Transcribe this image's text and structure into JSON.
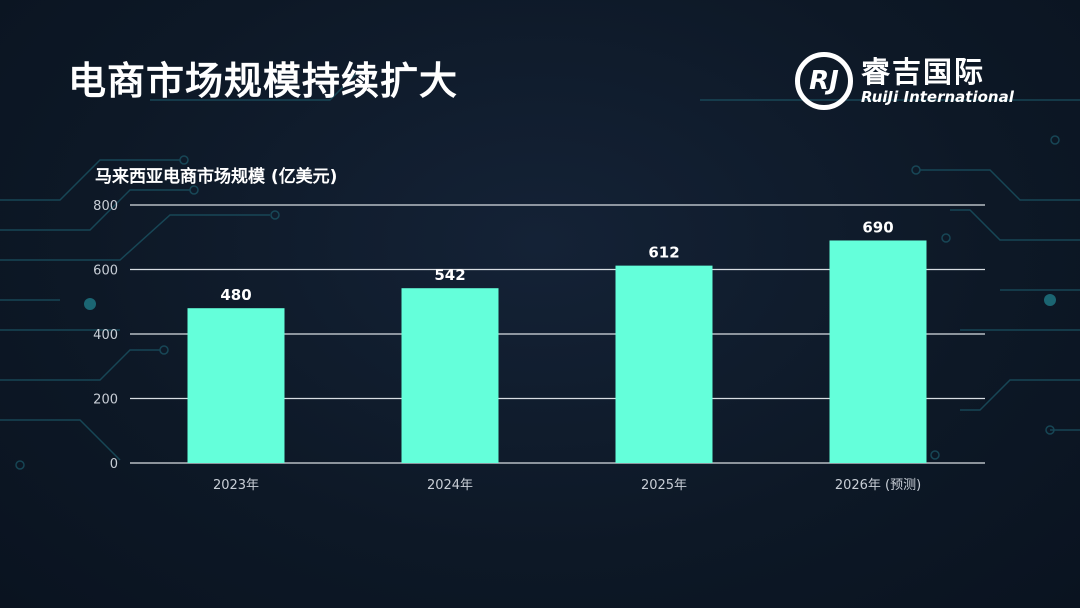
{
  "header": {
    "title": "电商市场规模持续扩大"
  },
  "logo": {
    "mark": "RJ",
    "cn": "睿吉国际",
    "en": "RuiJi International"
  },
  "chart_data": {
    "type": "bar",
    "title": "马来西亚电商市场规模 (亿美元)",
    "categories": [
      "2023年",
      "2024年",
      "2025年",
      "2026年 (预测)"
    ],
    "values": [
      480,
      542,
      612,
      690
    ],
    "ylim": [
      0,
      800
    ],
    "yticks": [
      0,
      200,
      400,
      600,
      800
    ],
    "grid": true,
    "bar_color": "#64FFDA"
  }
}
